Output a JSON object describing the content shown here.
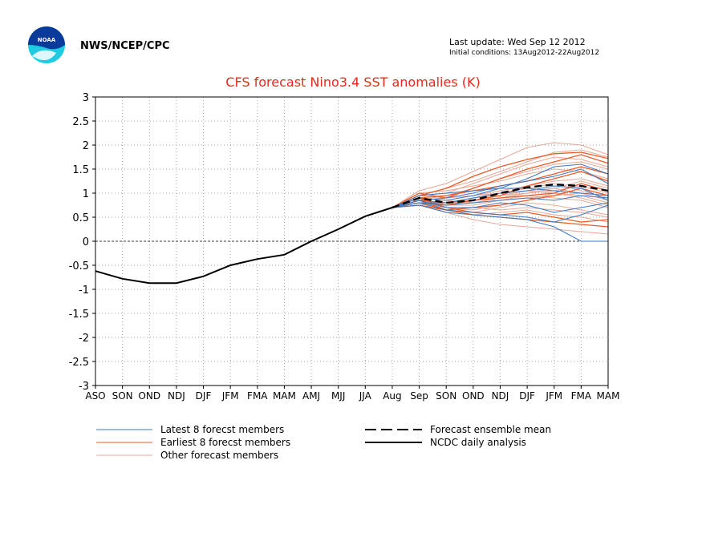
{
  "header": {
    "org_label": "NWS/NCEP/CPC",
    "last_update": "Last update: Wed Sep 12 2012",
    "initial_conditions": "Initial conditions: 13Aug2012-22Aug2012",
    "logo_text": "NOAA"
  },
  "chart_data": {
    "type": "line",
    "title": "CFS forecast Nino3.4 SST anomalies (K)",
    "xlabel": "",
    "ylabel": "",
    "categories": [
      "ASO",
      "SON",
      "OND",
      "NDJ",
      "DJF",
      "JFM",
      "FMA",
      "MAM",
      "AMJ",
      "MJJ",
      "JJA",
      "Aug",
      "Sep",
      "SON",
      "OND",
      "NDJ",
      "DJF",
      "JFM",
      "FMA",
      "MAM"
    ],
    "ylim": [
      -3,
      3
    ],
    "yticks": [
      "3",
      "2.5",
      "2",
      "1.5",
      "1",
      "0.5",
      "0",
      "-0.5",
      "-1",
      "-1.5",
      "-2",
      "-2.5",
      "-3"
    ],
    "grid": true,
    "legend_position": "bottom",
    "colors": {
      "title": "#e8281a",
      "latest": "#3a78c4",
      "earliest": "#ea5a26",
      "other": "#e8a898",
      "analysis": "#000000"
    },
    "analysis": {
      "name": "NCDC daily analysis",
      "x": [
        0,
        1,
        2,
        3,
        4,
        5,
        6,
        7,
        8,
        9,
        10,
        11
      ],
      "y": [
        -0.62,
        -0.78,
        -0.87,
        -0.87,
        -0.73,
        -0.5,
        -0.37,
        -0.28,
        0.0,
        0.25,
        0.52,
        0.7
      ]
    },
    "ensemble_mean": {
      "name": "Forecast ensemble mean",
      "x": [
        11,
        12,
        13,
        14,
        15,
        16,
        17,
        18,
        19
      ],
      "y": [
        0.7,
        0.9,
        0.8,
        0.85,
        1.0,
        1.12,
        1.18,
        1.15,
        1.05
      ]
    },
    "member_x": [
      11,
      12,
      13,
      14,
      15,
      16,
      17,
      18,
      19
    ],
    "latest_members": [
      [
        0.7,
        0.8,
        0.65,
        0.6,
        0.55,
        0.5,
        0.4,
        0.55,
        0.75
      ],
      [
        0.7,
        0.9,
        0.85,
        0.95,
        1.1,
        1.3,
        1.55,
        1.6,
        1.4
      ],
      [
        0.7,
        0.75,
        0.6,
        0.55,
        0.5,
        0.45,
        0.3,
        0.0,
        0.0
      ],
      [
        0.7,
        0.85,
        0.9,
        1.0,
        1.15,
        1.25,
        1.35,
        1.5,
        1.2
      ],
      [
        0.7,
        0.8,
        0.75,
        0.8,
        0.85,
        0.9,
        0.85,
        0.95,
        0.9
      ],
      [
        0.7,
        0.85,
        0.7,
        0.7,
        0.8,
        0.75,
        0.6,
        0.7,
        0.8
      ],
      [
        0.7,
        0.95,
        1.0,
        1.05,
        1.1,
        1.1,
        1.05,
        1.0,
        0.95
      ],
      [
        0.7,
        0.8,
        0.8,
        0.9,
        1.0,
        1.05,
        1.15,
        1.1,
        0.85
      ]
    ],
    "earliest_members": [
      [
        0.7,
        0.95,
        1.1,
        1.35,
        1.55,
        1.7,
        1.82,
        1.85,
        1.72
      ],
      [
        0.7,
        0.85,
        0.65,
        0.55,
        0.5,
        0.45,
        0.4,
        0.35,
        0.3
      ],
      [
        0.7,
        1.0,
        0.9,
        1.1,
        1.3,
        1.5,
        1.65,
        1.8,
        1.62
      ],
      [
        0.7,
        0.8,
        0.75,
        0.85,
        0.95,
        1.15,
        1.3,
        1.45,
        1.25
      ],
      [
        0.7,
        0.9,
        0.95,
        1.05,
        1.15,
        1.25,
        1.4,
        1.55,
        1.4
      ],
      [
        0.7,
        0.75,
        0.65,
        0.7,
        0.75,
        0.85,
        0.95,
        1.1,
        0.95
      ],
      [
        0.7,
        0.85,
        0.8,
        0.85,
        0.9,
        0.95,
        1.0,
        1.2,
        1.05
      ],
      [
        0.7,
        0.9,
        0.7,
        0.6,
        0.55,
        0.6,
        0.5,
        0.4,
        0.45
      ]
    ],
    "other_members": [
      [
        0.7,
        1.05,
        1.2,
        1.45,
        1.7,
        1.95,
        2.05,
        2.0,
        1.8
      ],
      [
        0.7,
        0.8,
        0.6,
        0.45,
        0.35,
        0.3,
        0.25,
        0.2,
        0.15
      ],
      [
        0.7,
        0.95,
        1.0,
        1.2,
        1.4,
        1.6,
        1.75,
        1.7,
        1.55
      ],
      [
        0.7,
        0.85,
        0.75,
        0.75,
        0.85,
        0.95,
        0.9,
        0.85,
        0.7
      ],
      [
        0.7,
        0.9,
        0.85,
        0.95,
        1.05,
        1.15,
        1.25,
        1.3,
        1.15
      ],
      [
        0.7,
        0.75,
        0.65,
        0.6,
        0.7,
        0.8,
        0.75,
        0.65,
        0.55
      ],
      [
        0.7,
        1.0,
        1.05,
        1.15,
        1.25,
        1.4,
        1.5,
        1.45,
        1.3
      ],
      [
        0.7,
        0.85,
        0.8,
        0.9,
        0.95,
        1.0,
        1.1,
        1.25,
        1.1
      ],
      [
        0.7,
        0.8,
        0.7,
        0.65,
        0.75,
        0.85,
        1.0,
        0.95,
        0.8
      ],
      [
        0.7,
        0.95,
        0.9,
        0.95,
        1.0,
        1.1,
        1.2,
        1.05,
        0.9
      ],
      [
        0.7,
        0.9,
        0.75,
        0.85,
        0.95,
        1.05,
        1.0,
        0.9,
        0.75
      ],
      [
        0.7,
        0.85,
        0.95,
        1.1,
        1.3,
        1.45,
        1.6,
        1.65,
        1.5
      ],
      [
        0.7,
        0.8,
        0.7,
        0.7,
        0.65,
        0.7,
        0.65,
        0.6,
        0.5
      ],
      [
        0.7,
        0.95,
        1.1,
        1.25,
        1.45,
        1.65,
        1.85,
        1.9,
        1.75
      ],
      [
        0.7,
        0.75,
        0.8,
        0.9,
        1.0,
        1.05,
        1.1,
        1.0,
        0.85
      ],
      [
        0.7,
        0.9,
        0.85,
        0.8,
        0.85,
        0.9,
        0.95,
        1.0,
        0.95
      ],
      [
        0.7,
        0.85,
        0.75,
        0.8,
        0.9,
        1.0,
        1.05,
        1.15,
        1.0
      ],
      [
        0.7,
        0.8,
        0.65,
        0.55,
        0.6,
        0.65,
        0.55,
        0.5,
        0.4
      ]
    ],
    "legend": {
      "latest": "Latest 8 forecst members",
      "earliest": "Earliest 8 forecst members",
      "other": "Other forecast members",
      "mean": "Forecast ensemble mean",
      "analysis": "NCDC daily analysis"
    }
  }
}
